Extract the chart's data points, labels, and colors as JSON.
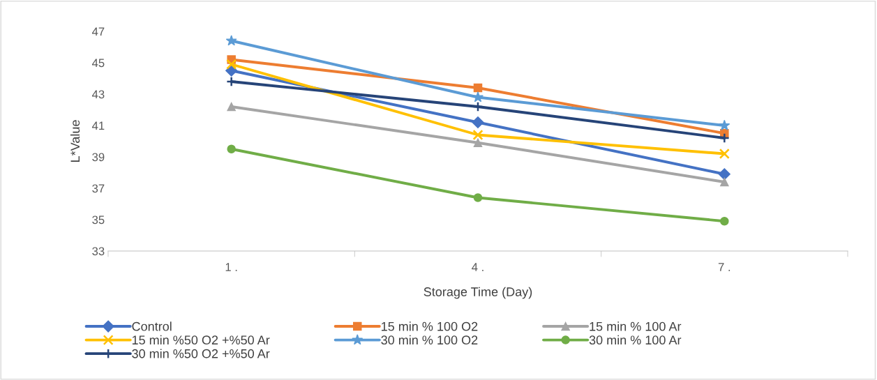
{
  "chart_data": {
    "type": "line",
    "xlabel": "Storage Time (Day)",
    "ylabel": "L*Value",
    "categories": [
      "1 .",
      "4 .",
      "7 ."
    ],
    "ylim": [
      33,
      47
    ],
    "yticks": [
      33,
      35,
      37,
      39,
      41,
      43,
      45,
      47
    ],
    "grid": false,
    "legend": "bottom",
    "series": [
      {
        "name": "Control",
        "color": "#4472c4",
        "marker": "diamond",
        "values": [
          44.5,
          41.2,
          37.9
        ]
      },
      {
        "name": "15 min % 100 O2",
        "color": "#ed7d31",
        "marker": "square",
        "values": [
          45.2,
          43.4,
          40.5
        ]
      },
      {
        "name": "15 min % 100 Ar",
        "color": "#a5a5a5",
        "marker": "triangle",
        "values": [
          42.2,
          39.9,
          37.4
        ]
      },
      {
        "name": "15 min %50 O2 +%50 Ar",
        "color": "#ffc000",
        "marker": "cross",
        "values": [
          44.9,
          40.4,
          39.2
        ]
      },
      {
        "name": "30 min % 100 O2",
        "color": "#5b9bd5",
        "marker": "star",
        "values": [
          46.4,
          42.8,
          41.0
        ]
      },
      {
        "name": "30 min % 100 Ar",
        "color": "#70ad47",
        "marker": "circle",
        "values": [
          39.5,
          36.4,
          34.9
        ]
      },
      {
        "name": "30 min %50 O2 +%50 Ar",
        "color": "#264478",
        "marker": "plus",
        "values": [
          43.8,
          42.2,
          40.2
        ]
      }
    ]
  }
}
